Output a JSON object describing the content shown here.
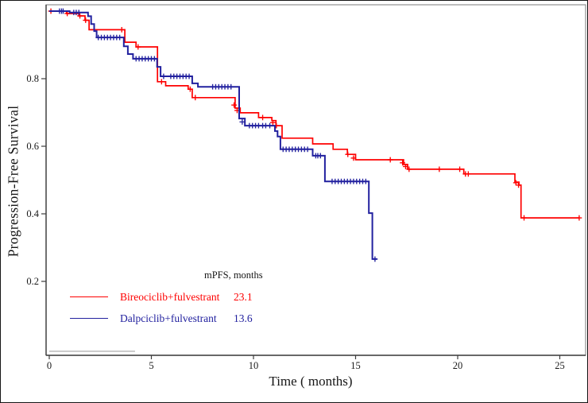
{
  "figure": {
    "background": "#ffffff",
    "outer_border_color": "#151515",
    "plot_box_color": "#8f8f8f",
    "axis_line_color": "#3d3d3d",
    "tick_label_color": "#1a1a1a"
  },
  "chart_data": {
    "type": "line",
    "subtype": "kaplan-meier-step-survival",
    "title": "",
    "xlabel": "Time ( months)",
    "ylabel": "Progression-Free Survival",
    "x_ticks": [
      0,
      5,
      10,
      15,
      20,
      25
    ],
    "x_tick_labels": [
      "0",
      "5",
      "10",
      "15",
      "20",
      "25"
    ],
    "y_ticks": [
      0.2,
      0.4,
      0.6,
      0.8
    ],
    "y_tick_labels": [
      "0.2",
      "0.4",
      "0.6",
      "0.8"
    ],
    "xlim": [
      0,
      26.3
    ],
    "ylim": [
      -0.02,
      1.02
    ],
    "grid": false,
    "axis_box": true,
    "legend": {
      "header": "mPFS, months",
      "position": "inside-bottom-left"
    },
    "baseline_artifact_segment": {
      "x_start": 0,
      "x_end": 4.2,
      "y_value": -0.007,
      "color": "#b3b3b3"
    },
    "series": [
      {
        "name": "Bireociclib+fulvestrant",
        "mpfs": "23.1",
        "color": "#fe0000",
        "start": [
          0,
          1.0
        ],
        "end_time": 25.95,
        "steps": [
          [
            0.85,
            0.993
          ],
          [
            1.45,
            0.986
          ],
          [
            1.75,
            0.973
          ],
          [
            1.95,
            0.945
          ],
          [
            3.7,
            0.908
          ],
          [
            4.25,
            0.894
          ],
          [
            5.3,
            0.791
          ],
          [
            5.7,
            0.779
          ],
          [
            6.8,
            0.769
          ],
          [
            7.0,
            0.744
          ],
          [
            9.1,
            0.713
          ],
          [
            9.35,
            0.699
          ],
          [
            10.25,
            0.685
          ],
          [
            10.9,
            0.676
          ],
          [
            11.1,
            0.661
          ],
          [
            11.4,
            0.624
          ],
          [
            12.9,
            0.607
          ],
          [
            13.9,
            0.591
          ],
          [
            14.6,
            0.576
          ],
          [
            15.0,
            0.56
          ],
          [
            17.35,
            0.546
          ],
          [
            17.55,
            0.532
          ],
          [
            20.3,
            0.518
          ],
          [
            22.8,
            0.494
          ],
          [
            23.0,
            0.485
          ],
          [
            23.1,
            0.388
          ]
        ],
        "censors": [
          [
            0.08,
            1.0
          ],
          [
            0.88,
            0.993
          ],
          [
            1.5,
            0.986
          ],
          [
            1.78,
            0.973
          ],
          [
            3.55,
            0.945
          ],
          [
            4.35,
            0.894
          ],
          [
            5.5,
            0.791
          ],
          [
            6.9,
            0.769
          ],
          [
            7.15,
            0.744
          ],
          [
            9.05,
            0.722
          ],
          [
            9.2,
            0.706
          ],
          [
            10.45,
            0.685
          ],
          [
            10.95,
            0.67
          ],
          [
            11.12,
            0.661
          ],
          [
            14.62,
            0.576
          ],
          [
            14.9,
            0.565
          ],
          [
            16.7,
            0.56
          ],
          [
            17.3,
            0.551
          ],
          [
            17.45,
            0.54
          ],
          [
            17.62,
            0.532
          ],
          [
            19.1,
            0.532
          ],
          [
            20.1,
            0.532
          ],
          [
            20.38,
            0.518
          ],
          [
            20.52,
            0.518
          ],
          [
            22.85,
            0.492
          ],
          [
            22.98,
            0.485
          ],
          [
            23.25,
            0.388
          ],
          [
            25.95,
            0.388
          ]
        ]
      },
      {
        "name": "Dalpciclib+fulvestrant",
        "mpfs": "13.6",
        "color": "#22219f",
        "start": [
          0,
          1.0
        ],
        "end_time": 16.05,
        "steps": [
          [
            1.0,
            0.996
          ],
          [
            1.9,
            0.985
          ],
          [
            2.05,
            0.962
          ],
          [
            2.2,
            0.941
          ],
          [
            2.32,
            0.922
          ],
          [
            3.65,
            0.896
          ],
          [
            3.85,
            0.873
          ],
          [
            4.1,
            0.859
          ],
          [
            5.28,
            0.835
          ],
          [
            5.45,
            0.807
          ],
          [
            7.0,
            0.786
          ],
          [
            7.28,
            0.776
          ],
          [
            9.3,
            0.682
          ],
          [
            9.58,
            0.661
          ],
          [
            11.05,
            0.645
          ],
          [
            11.18,
            0.629
          ],
          [
            11.32,
            0.591
          ],
          [
            12.9,
            0.572
          ],
          [
            13.5,
            0.496
          ],
          [
            15.65,
            0.402
          ],
          [
            15.82,
            0.266
          ]
        ],
        "censors": [
          [
            0.5,
            1.0
          ],
          [
            0.6,
            1.0
          ],
          [
            0.68,
            1.0
          ],
          [
            1.2,
            0.996
          ],
          [
            1.32,
            0.996
          ],
          [
            1.45,
            0.996
          ],
          [
            2.4,
            0.922
          ],
          [
            2.55,
            0.922
          ],
          [
            2.7,
            0.922
          ],
          [
            2.85,
            0.922
          ],
          [
            3.0,
            0.922
          ],
          [
            3.15,
            0.922
          ],
          [
            3.3,
            0.922
          ],
          [
            3.45,
            0.922
          ],
          [
            4.25,
            0.859
          ],
          [
            4.4,
            0.859
          ],
          [
            4.55,
            0.859
          ],
          [
            4.7,
            0.859
          ],
          [
            4.85,
            0.859
          ],
          [
            5.0,
            0.859
          ],
          [
            5.15,
            0.859
          ],
          [
            5.6,
            0.807
          ],
          [
            5.95,
            0.807
          ],
          [
            6.1,
            0.807
          ],
          [
            6.25,
            0.807
          ],
          [
            6.4,
            0.807
          ],
          [
            6.55,
            0.807
          ],
          [
            6.7,
            0.807
          ],
          [
            6.85,
            0.807
          ],
          [
            8.0,
            0.776
          ],
          [
            8.15,
            0.776
          ],
          [
            8.3,
            0.776
          ],
          [
            8.45,
            0.776
          ],
          [
            8.6,
            0.776
          ],
          [
            8.75,
            0.776
          ],
          [
            8.9,
            0.776
          ],
          [
            9.45,
            0.672
          ],
          [
            9.8,
            0.661
          ],
          [
            9.95,
            0.661
          ],
          [
            10.1,
            0.661
          ],
          [
            10.25,
            0.661
          ],
          [
            10.45,
            0.661
          ],
          [
            10.6,
            0.661
          ],
          [
            10.8,
            0.661
          ],
          [
            11.45,
            0.591
          ],
          [
            11.6,
            0.591
          ],
          [
            11.75,
            0.591
          ],
          [
            11.9,
            0.591
          ],
          [
            12.05,
            0.591
          ],
          [
            12.2,
            0.591
          ],
          [
            12.35,
            0.591
          ],
          [
            12.5,
            0.591
          ],
          [
            12.65,
            0.591
          ],
          [
            13.05,
            0.572
          ],
          [
            13.15,
            0.572
          ],
          [
            13.28,
            0.572
          ],
          [
            13.85,
            0.496
          ],
          [
            14.0,
            0.496
          ],
          [
            14.15,
            0.496
          ],
          [
            14.3,
            0.496
          ],
          [
            14.45,
            0.496
          ],
          [
            14.6,
            0.496
          ],
          [
            14.75,
            0.496
          ],
          [
            14.9,
            0.496
          ],
          [
            15.05,
            0.496
          ],
          [
            15.2,
            0.496
          ],
          [
            15.35,
            0.496
          ],
          [
            15.5,
            0.496
          ],
          [
            15.95,
            0.266
          ]
        ]
      }
    ]
  }
}
